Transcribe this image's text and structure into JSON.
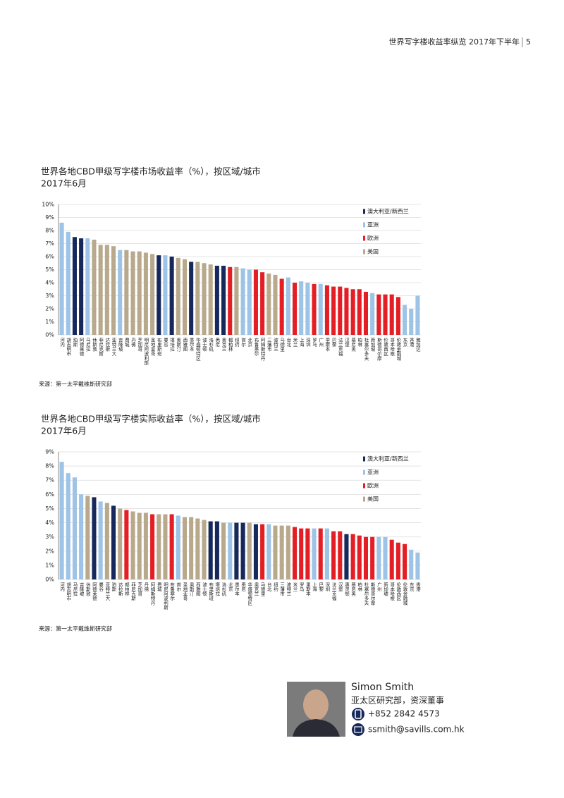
{
  "header": {
    "text": "世界写字楼收益率纵览 2017年下半年",
    "page": "5"
  },
  "chart_data": [
    {
      "type": "bar",
      "title": "世界各地CBD甲级写字楼市场收益率（%），按区域/城市",
      "subtitle": "2017年6月",
      "source": "来源：第一太平戴维斯研究部",
      "categories": [
        "河内",
        "胡志明市",
        "珀斯",
        "阿德莱德",
        "马尼拉",
        "休斯敦",
        "菲尼克斯",
        "达拉斯",
        "亚特兰大",
        "吉隆坡",
        "费城",
        "丹佛",
        "芝加哥",
        "明尼阿波利斯",
        "圣地亚哥",
        "布里斯班",
        "曼谷",
        "堪培拉",
        "奥斯汀",
        "西雅图",
        "墨尔本",
        "华盛顿特区",
        "波士顿",
        "洛杉矶",
        "悉尼",
        "奥克兰",
        "都柏林",
        "纽约",
        "首尔",
        "北京",
        "布鲁塞尔",
        "阿姆斯特丹",
        "三藩市",
        "波特兰",
        "马德里",
        "台北",
        "米兰",
        "上海",
        "深圳",
        "罗马",
        "广州",
        "里斯本",
        "巴黎",
        "法兰克福",
        "汉堡",
        "慕尼黑",
        "柏林",
        "杜塞尔多夫",
        "新加坡",
        "斯德哥尔摩",
        "伦敦西区",
        "哥本哈根",
        "伦敦金融城",
        "东京",
        "香港",
        "雅加达"
      ],
      "values": [
        8.6,
        7.9,
        7.5,
        7.4,
        7.4,
        7.3,
        6.9,
        6.9,
        6.8,
        6.5,
        6.5,
        6.4,
        6.4,
        6.3,
        6.2,
        6.1,
        6.1,
        6.0,
        5.9,
        5.8,
        5.6,
        5.6,
        5.5,
        5.4,
        5.3,
        5.3,
        5.2,
        5.2,
        5.1,
        5.0,
        5.0,
        4.8,
        4.7,
        4.6,
        4.3,
        4.4,
        4.0,
        4.1,
        4.0,
        3.9,
        3.9,
        3.8,
        3.7,
        3.7,
        3.6,
        3.5,
        3.5,
        3.3,
        3.2,
        3.1,
        3.1,
        3.1,
        2.9,
        2.3,
        2.0,
        3.0
      ],
      "colors": [
        "#9dc3e6",
        "#9dc3e6",
        "#17285a",
        "#17285a",
        "#9dc3e6",
        "#b8a98c",
        "#b8a98c",
        "#b8a98c",
        "#b8a98c",
        "#9dc3e6",
        "#b8a98c",
        "#b8a98c",
        "#b8a98c",
        "#b8a98c",
        "#b8a98c",
        "#17285a",
        "#9dc3e6",
        "#17285a",
        "#b8a98c",
        "#b8a98c",
        "#17285a",
        "#b8a98c",
        "#b8a98c",
        "#b8a98c",
        "#17285a",
        "#17285a",
        "#e31e24",
        "#b8a98c",
        "#9dc3e6",
        "#9dc3e6",
        "#e31e24",
        "#e31e24",
        "#b8a98c",
        "#b8a98c",
        "#e31e24",
        "#9dc3e6",
        "#e31e24",
        "#9dc3e6",
        "#9dc3e6",
        "#e31e24",
        "#9dc3e6",
        "#e31e24",
        "#e31e24",
        "#e31e24",
        "#e31e24",
        "#e31e24",
        "#e31e24",
        "#e31e24",
        "#9dc3e6",
        "#e31e24",
        "#e31e24",
        "#e31e24",
        "#e31e24",
        "#9dc3e6",
        "#9dc3e6",
        "#9dc3e6"
      ],
      "legend": [
        {
          "name": "澳大利亚/新西兰",
          "color": "#17285a"
        },
        {
          "name": "亚洲",
          "color": "#9dc3e6"
        },
        {
          "name": "欧洲",
          "color": "#e31e24"
        },
        {
          "name": "美国",
          "color": "#b8a98c"
        }
      ],
      "legend_position": "upper right",
      "ylim": [
        0,
        10
      ],
      "yticks": [
        {
          "value": 0,
          "label": "0%"
        },
        {
          "value": 1,
          "label": "1%"
        },
        {
          "value": 2,
          "label": "2%"
        },
        {
          "value": 3,
          "label": "3%"
        },
        {
          "value": 4,
          "label": "4%"
        },
        {
          "value": 5,
          "label": "5%"
        },
        {
          "value": 6,
          "label": "6%"
        },
        {
          "value": 7,
          "label": "7%"
        },
        {
          "value": 8,
          "label": "8%"
        },
        {
          "value": 9,
          "label": "9%"
        },
        {
          "value": 10,
          "label": "10%"
        }
      ],
      "grid": true
    },
    {
      "type": "bar",
      "title": "世界各地CBD甲级写字楼实际收益率（%），按区域/城市",
      "subtitle": "2017年6月",
      "source": "来源：第一太平戴维斯研究部",
      "categories": [
        "河内",
        "胡志明市",
        "马尼拉",
        "吉隆坡",
        "休斯敦",
        "阿德莱德",
        "曼谷",
        "亚特兰大",
        "珀斯",
        "达拉斯",
        "都柏林",
        "菲尼克斯",
        "芝加哥",
        "丹佛",
        "阿姆斯特丹",
        "费城",
        "明尼阿波利斯",
        "布鲁塞尔",
        "首尔",
        "圣地亚哥",
        "奥斯汀",
        "西雅图",
        "波士顿",
        "布里斯班",
        "堪培拉",
        "洛杉矶",
        "北京",
        "墨尔本",
        "悉尼",
        "华盛顿特区",
        "奥克兰",
        "马德里",
        "台北",
        "纽约",
        "三藩市",
        "波特兰",
        "米兰",
        "罗马",
        "里斯本",
        "上海",
        "巴黎",
        "深圳",
        "法兰克福",
        "汉堡",
        "惠灵顿",
        "慕尼黑",
        "柏林",
        "杜塞尔多夫",
        "斯德哥尔摩",
        "广州",
        "新加坡",
        "哥本哈根",
        "伦敦西区",
        "伦敦金融城",
        "东京",
        "香港"
      ],
      "values": [
        8.3,
        7.5,
        7.2,
        6.0,
        5.9,
        5.8,
        5.5,
        5.4,
        5.2,
        5.0,
        4.9,
        4.8,
        4.7,
        4.7,
        4.6,
        4.6,
        4.6,
        4.6,
        4.5,
        4.4,
        4.4,
        4.3,
        4.2,
        4.1,
        4.1,
        4.0,
        4.0,
        4.0,
        4.0,
        4.0,
        3.9,
        3.9,
        3.9,
        3.8,
        3.8,
        3.8,
        3.7,
        3.6,
        3.6,
        3.6,
        3.6,
        3.6,
        3.4,
        3.4,
        3.2,
        3.2,
        3.1,
        3.0,
        3.0,
        3.0,
        3.0,
        2.8,
        2.6,
        2.5,
        2.1,
        1.9
      ],
      "colors": [
        "#9dc3e6",
        "#9dc3e6",
        "#9dc3e6",
        "#9dc3e6",
        "#b8a98c",
        "#17285a",
        "#9dc3e6",
        "#b8a98c",
        "#17285a",
        "#b8a98c",
        "#e31e24",
        "#b8a98c",
        "#b8a98c",
        "#b8a98c",
        "#e31e24",
        "#b8a98c",
        "#b8a98c",
        "#e31e24",
        "#9dc3e6",
        "#b8a98c",
        "#b8a98c",
        "#b8a98c",
        "#b8a98c",
        "#17285a",
        "#17285a",
        "#b8a98c",
        "#9dc3e6",
        "#17285a",
        "#17285a",
        "#b8a98c",
        "#17285a",
        "#e31e24",
        "#9dc3e6",
        "#b8a98c",
        "#b8a98c",
        "#b8a98c",
        "#e31e24",
        "#e31e24",
        "#e31e24",
        "#9dc3e6",
        "#e31e24",
        "#9dc3e6",
        "#e31e24",
        "#e31e24",
        "#17285a",
        "#e31e24",
        "#e31e24",
        "#e31e24",
        "#e31e24",
        "#9dc3e6",
        "#9dc3e6",
        "#e31e24",
        "#e31e24",
        "#e31e24",
        "#9dc3e6",
        "#9dc3e6"
      ],
      "legend": [
        {
          "name": "澳大利亚/新西兰",
          "color": "#17285a"
        },
        {
          "name": "亚洲",
          "color": "#9dc3e6"
        },
        {
          "name": "欧洲",
          "color": "#e31e24"
        },
        {
          "name": "美国",
          "color": "#b8a98c"
        }
      ],
      "legend_position": "upper right",
      "ylim": [
        0,
        9
      ],
      "yticks": [
        {
          "value": 0,
          "label": "0%"
        },
        {
          "value": 1,
          "label": "1%"
        },
        {
          "value": 2,
          "label": "2%"
        },
        {
          "value": 3,
          "label": "3%"
        },
        {
          "value": 4,
          "label": "4%"
        },
        {
          "value": 5,
          "label": "5%"
        },
        {
          "value": 6,
          "label": "6%"
        },
        {
          "value": 7,
          "label": "7%"
        },
        {
          "value": 8,
          "label": "8%"
        },
        {
          "value": 9,
          "label": "9%"
        }
      ],
      "grid": true
    }
  ],
  "contact": {
    "name": "Simon Smith",
    "title": "亚太区研究部，资深董事",
    "phone": "+852 2842 4573",
    "email": "ssmith@savills.com.hk"
  }
}
